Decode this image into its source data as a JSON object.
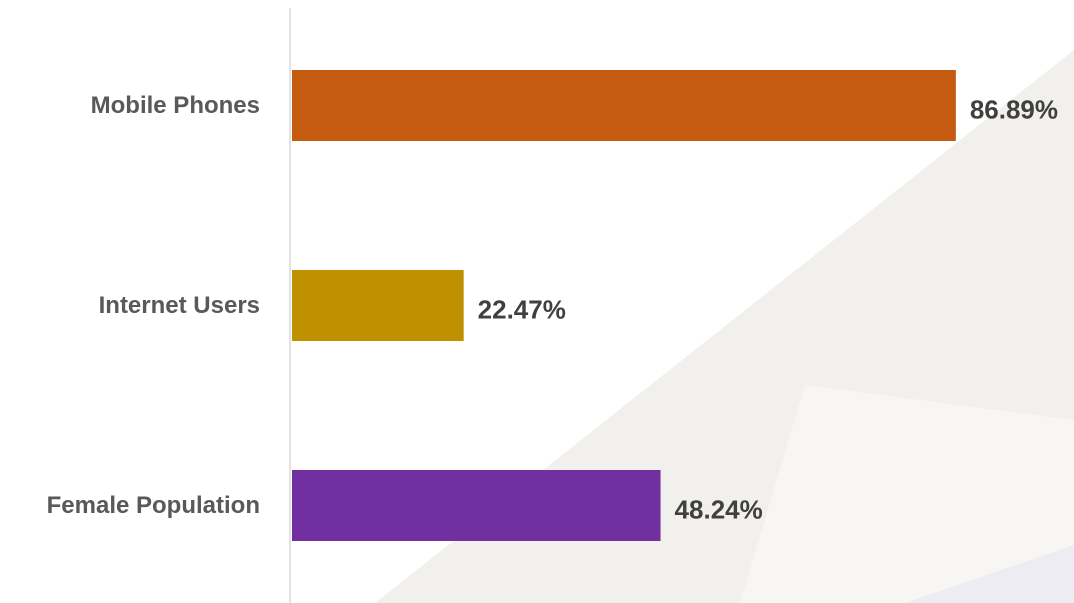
{
  "chart_data": {
    "type": "bar",
    "orientation": "horizontal",
    "categories": [
      "Mobile Phones",
      "Internet Users",
      "Female Population"
    ],
    "values": [
      86.89,
      22.47,
      48.24
    ],
    "value_labels": [
      "86.89%",
      "22.47%",
      "48.24%"
    ],
    "unit": "%",
    "xlim": [
      0,
      100
    ],
    "grid": false,
    "legend": "none",
    "colors": [
      "#c55a11",
      "#bf9000",
      "#7030a0"
    ]
  },
  "colors": {
    "axis_line": "#d9d9d9",
    "category_text": "#595959",
    "value_text": "#404040",
    "background_shape": "#f2f0ec",
    "background_shape_light": "#f7f6f3",
    "background_shape_accent": "#eeecf3"
  }
}
